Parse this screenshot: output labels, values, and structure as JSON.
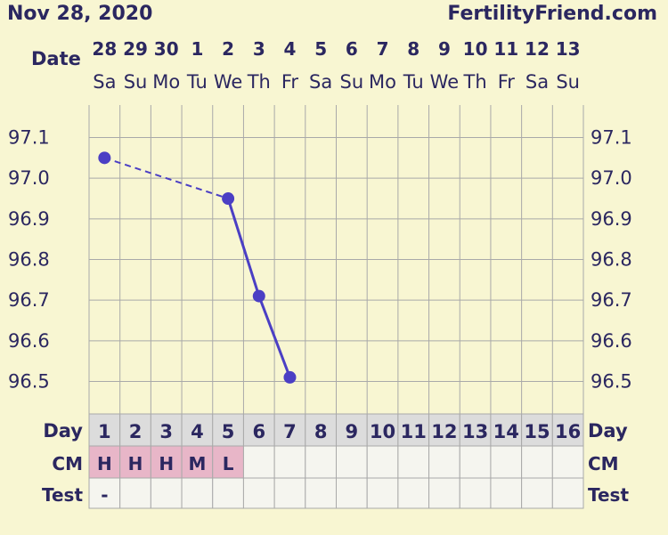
{
  "header": {
    "date": "Nov 28, 2020",
    "site": "FertilityFriend.com"
  },
  "row_labels": {
    "date": "Date",
    "day": "Day",
    "cm": "CM",
    "test": "Test"
  },
  "columns": [
    {
      "date": "28",
      "weekday": "Sa",
      "day": "1",
      "cm": "H",
      "test": "-"
    },
    {
      "date": "29",
      "weekday": "Su",
      "day": "2",
      "cm": "H",
      "test": ""
    },
    {
      "date": "30",
      "weekday": "Mo",
      "day": "3",
      "cm": "H",
      "test": ""
    },
    {
      "date": "1",
      "weekday": "Tu",
      "day": "4",
      "cm": "M",
      "test": ""
    },
    {
      "date": "2",
      "weekday": "We",
      "day": "5",
      "cm": "L",
      "test": ""
    },
    {
      "date": "3",
      "weekday": "Th",
      "day": "6",
      "cm": "",
      "test": ""
    },
    {
      "date": "4",
      "weekday": "Fr",
      "day": "7",
      "cm": "",
      "test": ""
    },
    {
      "date": "5",
      "weekday": "Sa",
      "day": "8",
      "cm": "",
      "test": ""
    },
    {
      "date": "6",
      "weekday": "Su",
      "day": "9",
      "cm": "",
      "test": ""
    },
    {
      "date": "7",
      "weekday": "Mo",
      "day": "10",
      "cm": "",
      "test": ""
    },
    {
      "date": "8",
      "weekday": "Tu",
      "day": "11",
      "cm": "",
      "test": ""
    },
    {
      "date": "9",
      "weekday": "We",
      "day": "12",
      "cm": "",
      "test": ""
    },
    {
      "date": "10",
      "weekday": "Th",
      "day": "13",
      "cm": "",
      "test": ""
    },
    {
      "date": "11",
      "weekday": "Fr",
      "day": "14",
      "cm": "",
      "test": ""
    },
    {
      "date": "12",
      "weekday": "Sa",
      "day": "15",
      "cm": "",
      "test": ""
    },
    {
      "date": "13",
      "weekday": "Su",
      "day": "16",
      "cm": "",
      "test": ""
    }
  ],
  "colors": {
    "background": "#f8f6d2",
    "plot_background": "#f8f6d2",
    "grid": "#a9a9a9",
    "line": "#4b3fc4",
    "text": "#2b2760",
    "day_cell": "#dcdcdc",
    "cm_cell": "#e8b6c8",
    "empty_cell": "#f5f5ef"
  },
  "chart_data": {
    "type": "line",
    "x": [
      1,
      5,
      6,
      7
    ],
    "values": [
      97.05,
      96.95,
      96.71,
      96.51
    ],
    "segments": [
      {
        "from_day": 1,
        "to_day": 5,
        "style": "dashed"
      },
      {
        "from_day": 5,
        "to_day": 6,
        "style": "solid"
      },
      {
        "from_day": 6,
        "to_day": 7,
        "style": "solid"
      }
    ],
    "y_ticks": [
      "97.1",
      "97.0",
      "96.9",
      "96.8",
      "96.7",
      "96.6",
      "96.5"
    ],
    "ylim": [
      96.42,
      97.18
    ],
    "xlim": [
      1,
      16
    ],
    "grid": true,
    "title": "",
    "xlabel": "",
    "ylabel": ""
  }
}
